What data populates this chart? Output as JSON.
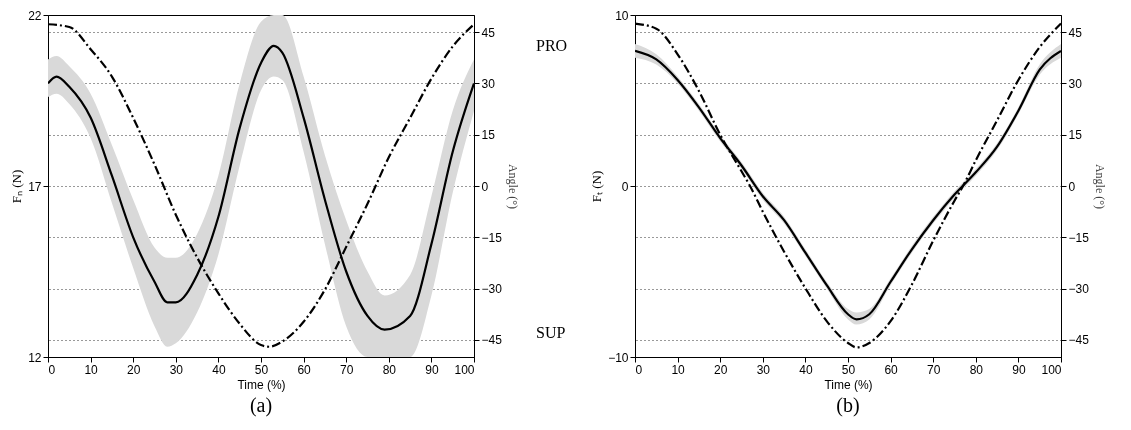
{
  "chart_data": [
    {
      "type": "line",
      "title": "(a)",
      "xlabel": "Time (%)",
      "ylabel": "Fₙ (N)",
      "y2label": "Angle (°)",
      "annotations": [
        "PRO",
        "SUP"
      ],
      "xlim": [
        0,
        100
      ],
      "xticks": [
        0,
        10,
        20,
        30,
        40,
        50,
        60,
        70,
        80,
        90,
        100
      ],
      "ylim": [
        12,
        22
      ],
      "yticks": [
        12,
        17,
        22
      ],
      "y2lim": [
        -50,
        50
      ],
      "y2ticks": [
        -45,
        -30,
        -15,
        0,
        15,
        30,
        45
      ],
      "grid": "y2",
      "series": [
        {
          "color": "#000000",
          "line_style": "solid",
          "x": [
            0,
            2,
            5,
            10,
            15,
            20,
            25,
            28,
            30,
            35,
            40,
            45,
            50,
            53,
            55,
            60,
            65,
            70,
            75,
            79,
            85,
            90,
            95,
            100
          ],
          "values": [
            20.0,
            20.2,
            19.9,
            19.0,
            17.3,
            15.5,
            14.2,
            13.6,
            13.6,
            14.4,
            16.1,
            18.7,
            20.6,
            21.1,
            20.9,
            19.0,
            16.6,
            14.5,
            13.2,
            12.8,
            13.2,
            15.3,
            18.0,
            20.0
          ],
          "lower": [
            19.6,
            19.7,
            19.4,
            18.4,
            16.5,
            14.6,
            12.9,
            12.3,
            12.4,
            13.3,
            15.0,
            17.6,
            19.8,
            20.2,
            20.1,
            18.0,
            15.3,
            12.9,
            12,
            12,
            12,
            13.8,
            16.8,
            19.2
          ],
          "upper": [
            20.7,
            20.8,
            20.5,
            19.7,
            18.2,
            16.6,
            15.2,
            14.9,
            14.9,
            15.6,
            17.3,
            20.0,
            21.8,
            22,
            22,
            20.2,
            17.9,
            16.0,
            14.5,
            13.8,
            14.4,
            16.7,
            19.2,
            20.7
          ]
        },
        {
          "color": "#000000",
          "line_style": "dashed",
          "axis": "y2",
          "x": [
            0,
            5,
            10,
            15,
            20,
            25,
            30,
            35,
            40,
            45,
            50,
            52,
            55,
            60,
            65,
            70,
            75,
            80,
            85,
            90,
            95,
            100
          ],
          "values": [
            47.3,
            46.5,
            40,
            32,
            19.9,
            6.3,
            -8.4,
            -20.9,
            -31.4,
            -40.3,
            -46.5,
            -47,
            -45.5,
            -39.7,
            -30.3,
            -17.8,
            -5.2,
            8.4,
            19.9,
            31.4,
            40.8,
            47.3
          ]
        }
      ]
    },
    {
      "type": "line",
      "title": "(b)",
      "xlabel": "Time (%)",
      "ylabel": "Fₜ (N)",
      "y2label": "Angle (°)",
      "xlim": [
        0,
        100
      ],
      "xticks": [
        0,
        10,
        20,
        30,
        40,
        50,
        60,
        70,
        80,
        90,
        100
      ],
      "ylim": [
        -10,
        10
      ],
      "yticks": [
        -10,
        0,
        10
      ],
      "y2lim": [
        -50,
        50
      ],
      "y2ticks": [
        -45,
        -30,
        -15,
        0,
        15,
        30,
        45
      ],
      "grid": "y2",
      "series": [
        {
          "color": "#000000",
          "line_style": "solid",
          "x": [
            0,
            5,
            10,
            15,
            20,
            25,
            30,
            35,
            40,
            45,
            50,
            52,
            55,
            60,
            65,
            70,
            75,
            80,
            85,
            90,
            95,
            100
          ],
          "values": [
            7.9,
            7.4,
            6.2,
            4.6,
            2.8,
            1.2,
            -0.6,
            -2.0,
            -3.9,
            -5.8,
            -7.5,
            -7.8,
            -7.5,
            -5.6,
            -3.7,
            -2.0,
            -0.5,
            0.8,
            2.3,
            4.4,
            6.8,
            7.9
          ],
          "lower": [
            7.5,
            7.1,
            6.0,
            4.4,
            2.6,
            1.0,
            -0.8,
            -2.2,
            -4.1,
            -6.0,
            -7.8,
            -8.1,
            -7.8,
            -5.8,
            -3.9,
            -2.2,
            -0.7,
            0.6,
            2.1,
            4.2,
            6.5,
            7.5
          ],
          "upper": [
            8.3,
            7.7,
            6.4,
            4.8,
            3.0,
            1.4,
            -0.4,
            -1.8,
            -3.7,
            -5.6,
            -7.2,
            -7.4,
            -7.2,
            -5.4,
            -3.5,
            -1.8,
            -0.3,
            1.0,
            2.5,
            4.6,
            7.1,
            8.3
          ]
        },
        {
          "color": "#000000",
          "line_style": "dashed",
          "axis": "y2",
          "x": [
            0,
            5,
            10,
            15,
            20,
            25,
            27,
            30,
            35,
            40,
            45,
            50,
            52,
            55,
            60,
            65,
            70,
            75,
            77,
            80,
            85,
            90,
            95,
            100
          ],
          "values": [
            47.5,
            46,
            38.5,
            27.8,
            15,
            4.3,
            0,
            -7.5,
            -19.2,
            -29.9,
            -39.5,
            -45.9,
            -47.2,
            -45.9,
            -39.5,
            -28.8,
            -16,
            -4.3,
            0,
            7.5,
            19.2,
            31,
            40.6,
            47.5
          ]
        }
      ]
    }
  ]
}
